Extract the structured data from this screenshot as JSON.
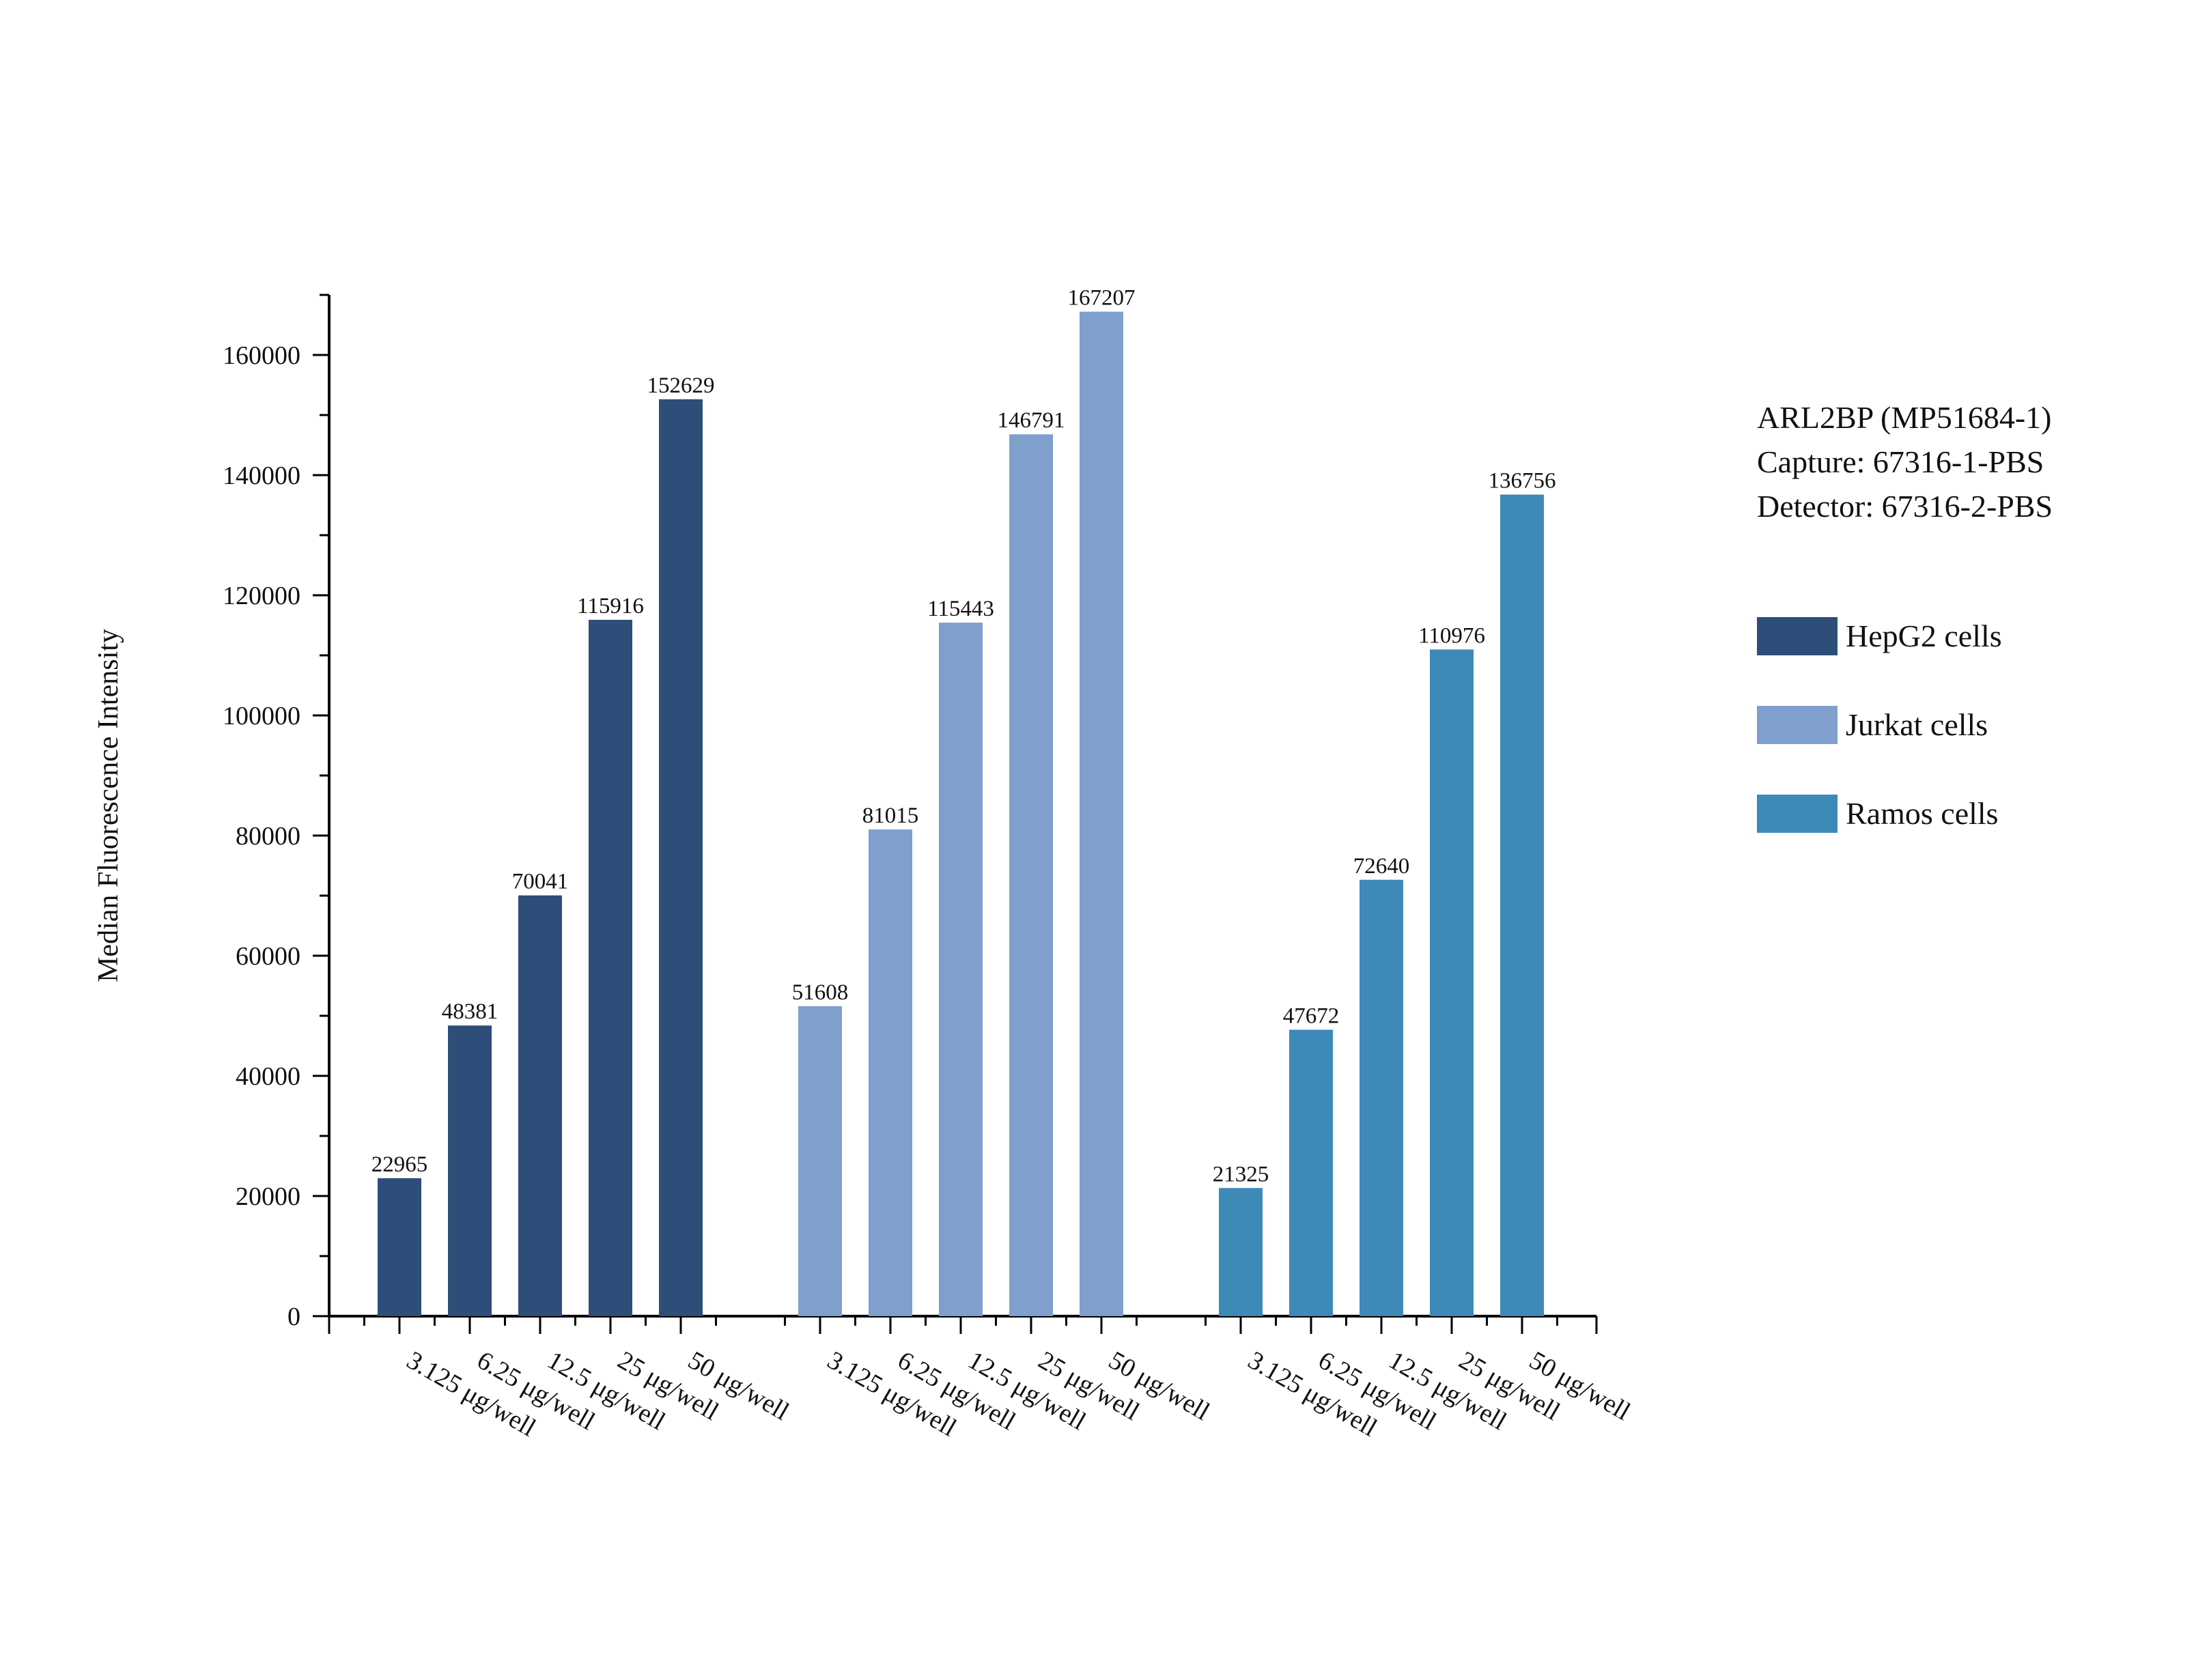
{
  "chart_data": {
    "type": "bar",
    "ylabel": "Median Fluorescence Intensity",
    "xlabel": "",
    "ylim": [
      0,
      170000
    ],
    "yticks": [
      0,
      20000,
      40000,
      60000,
      80000,
      100000,
      120000,
      140000,
      160000
    ],
    "grid": false,
    "legend_position": "right",
    "categories": [
      "3.125 μg/well",
      "6.25 μg/well",
      "12.5 μg/well",
      "25 μg/well",
      "50 μg/well"
    ],
    "series": [
      {
        "name": "HepG2 cells",
        "color": "#2e4e7a",
        "values": [
          22965,
          48381,
          70041,
          115916,
          152629
        ]
      },
      {
        "name": "Jurkat cells",
        "color": "#7f9fcc",
        "values": [
          51608,
          81015,
          115443,
          146791,
          167207
        ]
      },
      {
        "name": "Ramos cells",
        "color": "#3d89b8",
        "values": [
          21325,
          47672,
          72640,
          110976,
          136756
        ]
      }
    ],
    "annotations": [
      "ARL2BP (MP51684-1)",
      "Capture: 67316-1-PBS",
      "Detector: 67316-2-PBS"
    ]
  }
}
